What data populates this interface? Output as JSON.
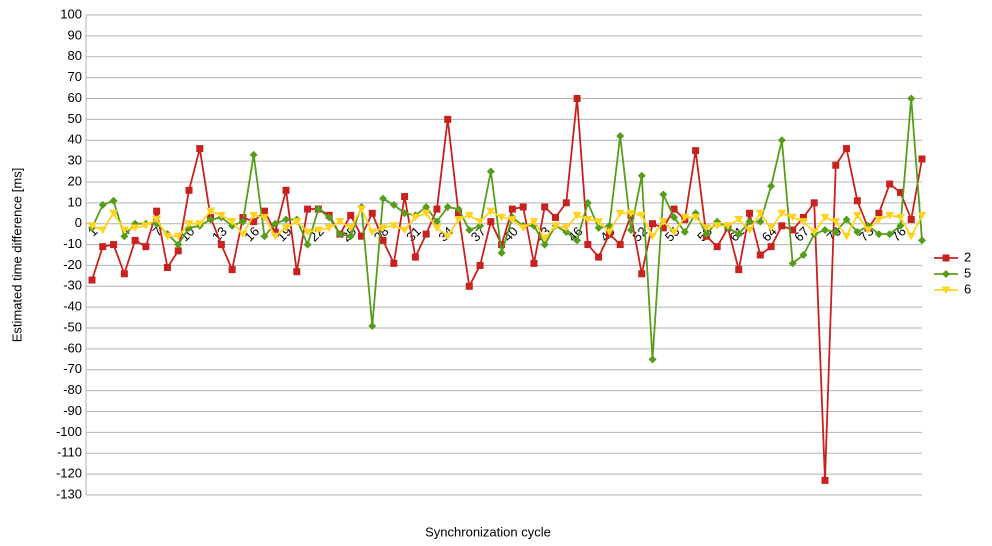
{
  "chart_data": {
    "type": "line",
    "y_label": "Estimated time difference [ms]",
    "x_label": "Synchronization cycle",
    "categories": [
      "1",
      null,
      null,
      "4",
      null,
      null,
      "7",
      null,
      null,
      "10",
      null,
      null,
      "13",
      null,
      null,
      "16",
      null,
      null,
      "19",
      null,
      null,
      "22",
      null,
      null,
      "25",
      null,
      null,
      "28",
      null,
      null,
      "31",
      null,
      null,
      "34",
      null,
      null,
      "37",
      null,
      null,
      "40",
      null,
      null,
      "43",
      null,
      null,
      "46",
      null,
      null,
      "49",
      null,
      null,
      "52",
      null,
      null,
      "55",
      null,
      null,
      "58",
      null,
      null,
      "61",
      null,
      null,
      "64",
      null,
      null,
      "67",
      null,
      null,
      "70",
      null,
      null,
      "73",
      null,
      null,
      "76",
      null,
      null
    ],
    "series": [
      {
        "name": "2",
        "color": "#c9211e",
        "marker": "square",
        "values": [
          -27,
          -11,
          -10,
          -24,
          -8,
          -11,
          6,
          -21,
          -13,
          16,
          36,
          3,
          -10,
          -22,
          3,
          1,
          6,
          -4,
          16,
          -23,
          7,
          7,
          4,
          -5,
          4,
          -6,
          5,
          -8,
          -19,
          13,
          -16,
          -5,
          7,
          50,
          5,
          -30,
          -20,
          1,
          -10,
          7,
          8,
          -19,
          8,
          3,
          10,
          60,
          -10,
          -16,
          -5,
          -10,
          4,
          -24,
          0,
          -2,
          7,
          2,
          35,
          -6,
          -11,
          -2,
          -22,
          5,
          -15,
          -11,
          -1,
          -3,
          3,
          10,
          -123,
          28,
          36,
          11,
          -2,
          5,
          19,
          15,
          2,
          31
        ]
      },
      {
        "name": "5",
        "color": "#579d1c",
        "marker": "diamond",
        "values": [
          -2,
          9,
          11,
          -6,
          0,
          0,
          0,
          -5,
          -10,
          -2,
          -1,
          2,
          3,
          -1,
          1,
          33,
          -6,
          0,
          2,
          2,
          -10,
          7,
          3,
          -5,
          -6,
          8,
          -49,
          12,
          9,
          5,
          4,
          8,
          1,
          8,
          7,
          -3,
          -1,
          25,
          -14,
          3,
          -1,
          -1,
          -10,
          -1,
          -4,
          -8,
          10,
          -2,
          -1,
          42,
          -3,
          23,
          -65,
          14,
          3,
          -4,
          5,
          -5,
          1,
          -2,
          -5,
          1,
          1,
          18,
          40,
          -19,
          -15,
          -5,
          -3,
          -4,
          2,
          -4,
          -1,
          -5,
          -5,
          -1,
          60,
          -8
        ]
      },
      {
        "name": "6",
        "color": "#ffd320",
        "marker": "triangle",
        "values": [
          -1,
          -3,
          5,
          -3,
          -2,
          -1,
          2,
          -6,
          -6,
          0,
          0,
          6,
          4,
          1,
          -5,
          4,
          3,
          -6,
          -2,
          1,
          -4,
          -3,
          -2,
          1,
          -2,
          7,
          -4,
          -2,
          -1,
          -3,
          3,
          5,
          -2,
          -6,
          2,
          4,
          1,
          6,
          3,
          2,
          -2,
          1,
          -7,
          -1,
          -2,
          4,
          2,
          1,
          -4,
          5,
          5,
          4,
          -6,
          1,
          -4,
          3,
          3,
          -2,
          -1,
          -1,
          2,
          -3,
          5,
          -2,
          5,
          3,
          1,
          -4,
          3,
          1,
          -6,
          4,
          -3,
          2,
          4,
          3,
          -6,
          4
        ]
      }
    ],
    "ylim": [
      -130,
      100
    ],
    "yticks": [
      -130,
      -120,
      -110,
      -100,
      -90,
      -80,
      -70,
      -60,
      -50,
      -40,
      -30,
      -20,
      -10,
      0,
      10,
      20,
      30,
      40,
      50,
      60,
      70,
      80,
      90,
      100
    ],
    "grid": true,
    "legend": "right"
  }
}
